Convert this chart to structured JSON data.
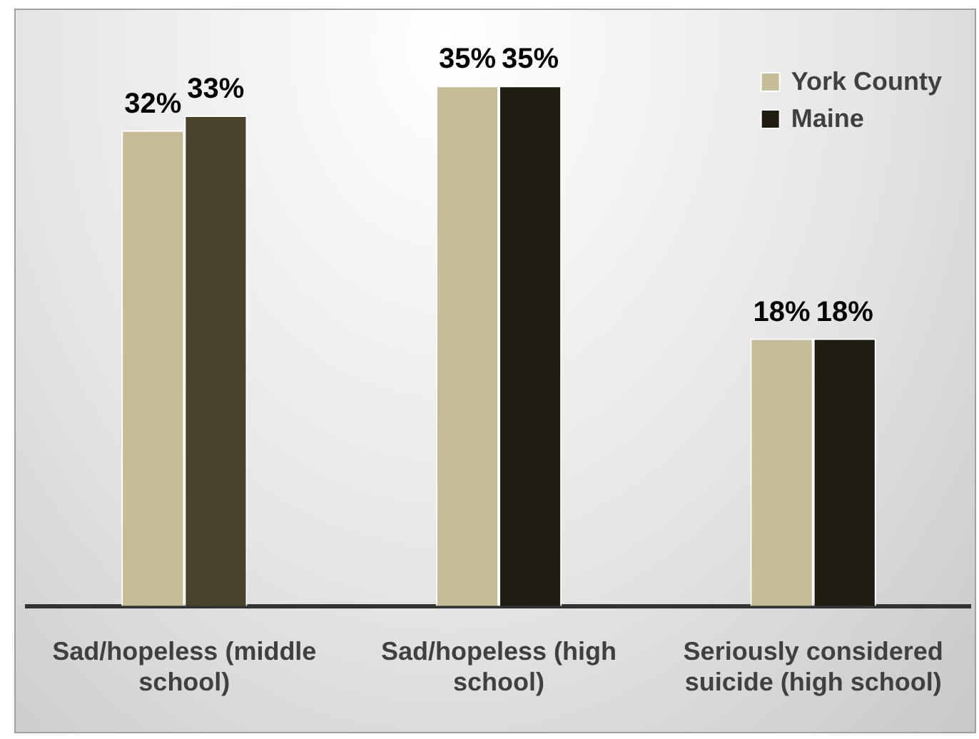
{
  "chart_data": {
    "type": "bar",
    "categories": [
      "Sad/hopeless (middle school)",
      "Sad/hopeless (high school)",
      "Seriously considered suicide (high school)"
    ],
    "series": [
      {
        "name": "York County",
        "color": "#c5bd98",
        "values": [
          32,
          35,
          18
        ],
        "value_labels": [
          "32%",
          "35%",
          "18%"
        ]
      },
      {
        "name": "Maine",
        "color": "#1f1c12",
        "colors": [
          "#4a432c",
          "#1f1c12",
          "#1f1c12"
        ],
        "values": [
          33,
          35,
          18
        ],
        "value_labels": [
          "33%",
          "35%",
          "18%"
        ]
      }
    ],
    "relative": false,
    "tick_labels": "x",
    "grid": false,
    "legend": "top right"
  }
}
